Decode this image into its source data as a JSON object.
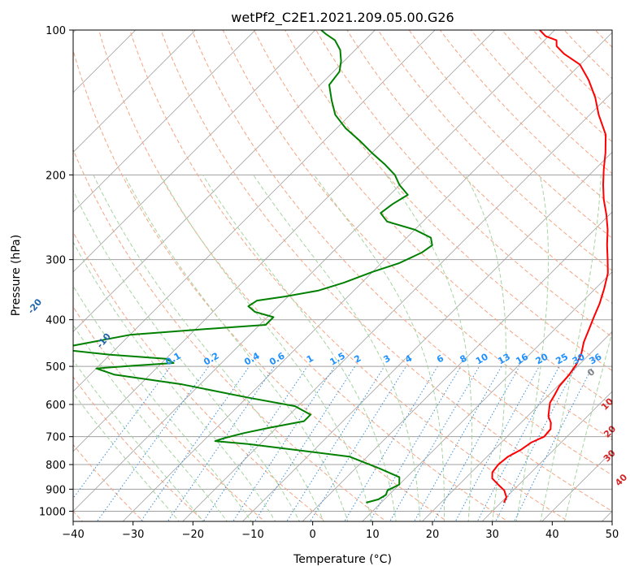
{
  "chart_data": {
    "type": "line",
    "subtype": "skew-t log-p diagram",
    "title": "wetPf2_C2E1.2021.209.05.00.G26",
    "xlabel": "Temperature (°C)",
    "ylabel": "Pressure (hPa)",
    "xlim": [
      -40,
      50
    ],
    "ylim": [
      1050,
      100
    ],
    "y_scale": "log",
    "grid": true,
    "x_ticks": [
      -40,
      -30,
      -20,
      -10,
      0,
      10,
      20,
      30,
      40,
      50
    ],
    "y_ticks": [
      1000,
      900,
      800,
      700,
      600,
      500,
      400,
      300,
      200,
      100
    ],
    "series": [
      {
        "name": "Temperature",
        "color": "#ff0000",
        "points": [
          [
            30.5,
            960
          ],
          [
            30.0,
            935
          ],
          [
            28.5,
            905
          ],
          [
            26.5,
            880
          ],
          [
            24.5,
            855
          ],
          [
            23.5,
            830
          ],
          [
            23.2,
            800
          ],
          [
            23.5,
            770
          ],
          [
            24.5,
            745
          ],
          [
            25.0,
            720
          ],
          [
            26.2,
            700
          ],
          [
            26.0,
            675
          ],
          [
            25.0,
            655
          ],
          [
            23.5,
            635
          ],
          [
            22.5,
            615
          ],
          [
            21.5,
            595
          ],
          [
            21.0,
            575
          ],
          [
            20.3,
            550
          ],
          [
            20.0,
            520
          ],
          [
            19.5,
            495
          ],
          [
            18.5,
            470
          ],
          [
            17.0,
            445
          ],
          [
            15.8,
            420
          ],
          [
            14.5,
            395
          ],
          [
            13.2,
            370
          ],
          [
            11.5,
            345
          ],
          [
            9.5,
            320
          ],
          [
            7.2,
            300
          ],
          [
            4.7,
            280
          ],
          [
            2.2,
            260
          ],
          [
            -0.5,
            242
          ],
          [
            -3.5,
            225
          ],
          [
            -6.0,
            210
          ],
          [
            -8.5,
            195
          ],
          [
            -11.0,
            180
          ],
          [
            -14.0,
            165
          ],
          [
            -18.5,
            150
          ],
          [
            -22.0,
            138
          ],
          [
            -26.0,
            127
          ],
          [
            -30.0,
            118
          ],
          [
            -34.5,
            112
          ],
          [
            -37.0,
            108
          ],
          [
            -38.0,
            105
          ],
          [
            -40.5,
            103
          ],
          [
            -42.5,
            100
          ]
        ]
      },
      {
        "name": "Dewpoint",
        "color": "#008000",
        "points": [
          [
            7.5,
            960
          ],
          [
            9.0,
            945
          ],
          [
            9.5,
            925
          ],
          [
            9.0,
            905
          ],
          [
            10.0,
            880
          ],
          [
            8.8,
            850
          ],
          [
            4.0,
            815
          ],
          [
            -3.0,
            770
          ],
          [
            -22.0,
            725
          ],
          [
            -28.0,
            715
          ],
          [
            -27.0,
            705
          ],
          [
            -24.5,
            688
          ],
          [
            -21.0,
            670
          ],
          [
            -16.5,
            650
          ],
          [
            -16.5,
            630
          ],
          [
            -20.5,
            605
          ],
          [
            -30.0,
            580
          ],
          [
            -43.0,
            545
          ],
          [
            -56.0,
            520
          ],
          [
            -60.0,
            505
          ],
          [
            -54.0,
            498
          ],
          [
            -48.0,
            492
          ],
          [
            -50.0,
            482
          ],
          [
            -60.0,
            473
          ],
          [
            -70.0,
            460
          ],
          [
            -60.0,
            430
          ],
          [
            -48.0,
            418
          ],
          [
            -39.0,
            410
          ],
          [
            -39.0,
            395
          ],
          [
            -43.0,
            385
          ],
          [
            -45.0,
            375
          ],
          [
            -44.5,
            365
          ],
          [
            -40.5,
            358
          ],
          [
            -36.0,
            348
          ],
          [
            -33.0,
            335
          ],
          [
            -30.0,
            318
          ],
          [
            -27.0,
            305
          ],
          [
            -25.0,
            290
          ],
          [
            -24.5,
            280
          ],
          [
            -26.0,
            270
          ],
          [
            -30.0,
            260
          ],
          [
            -36.0,
            250
          ],
          [
            -38.5,
            240
          ],
          [
            -38.0,
            230
          ],
          [
            -37.0,
            220
          ],
          [
            -40.0,
            210
          ],
          [
            -42.5,
            200
          ],
          [
            -46.0,
            190
          ],
          [
            -50.0,
            180
          ],
          [
            -54.0,
            170
          ],
          [
            -58.5,
            160
          ],
          [
            -62.5,
            150
          ],
          [
            -65.5,
            140
          ],
          [
            -68.5,
            130
          ],
          [
            -69.0,
            122
          ],
          [
            -70.5,
            116
          ],
          [
            -72.5,
            110
          ],
          [
            -75.0,
            105
          ],
          [
            -77.5,
            102
          ],
          [
            -79.0,
            100
          ]
        ]
      }
    ],
    "dry_adiabats_theta_c": [
      -100,
      -90,
      -80,
      -70,
      -60,
      -50,
      -40,
      -30,
      -20,
      -10
    ],
    "moist_adiabats_label": [
      "0",
      "10",
      "20",
      "30",
      "40"
    ],
    "mixing_ratio_labels": [
      "0.1",
      "0.2",
      "0.4",
      "0.6",
      "1",
      "1.5",
      "2",
      "3",
      "4",
      "6",
      "8",
      "10",
      "13",
      "16",
      "20",
      "25",
      "30",
      "36"
    ],
    "colors": {
      "isotherm": "#a0a0a0",
      "isobar": "#a0a0a0",
      "dry_adiabat": "#f4a582",
      "moist_adiabat": "#a6d4a0",
      "mixing_ratio": "#3a8fd8",
      "dry_label": "#2166ac",
      "moist_label": "#d62728",
      "mixing_label": "#1e90ff"
    }
  }
}
